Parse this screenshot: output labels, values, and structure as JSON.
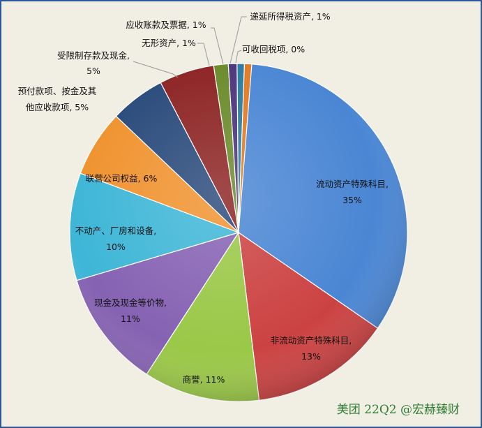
{
  "chart_data": {
    "type": "pie",
    "title": "",
    "slices": [
      {
        "label": "流动资产特殊科目",
        "value": 35,
        "pct_label": "35%",
        "color": "#4a86d4"
      },
      {
        "label": "非流动资产特殊科目",
        "value": 13,
        "pct_label": "13%",
        "color": "#cc4242"
      },
      {
        "label": "商誉",
        "value": 11,
        "pct_label": "11%",
        "color": "#9ac847"
      },
      {
        "label": "现金及现金等价物",
        "value": 11,
        "pct_label": "11%",
        "color": "#8662b3"
      },
      {
        "label": "不动产、厂房和设备",
        "value": 10,
        "pct_label": "10%",
        "color": "#3eb6d7"
      },
      {
        "label": "联营公司权益",
        "value": 6,
        "pct_label": "6%",
        "color": "#f0922e"
      },
      {
        "label": "预付款项、按金及其他应收款项",
        "value": 5,
        "pct_label": "5%",
        "color": "#28497a"
      },
      {
        "label": "受限制存款及现金",
        "value": 5,
        "pct_label": "5%",
        "color": "#8c2222"
      },
      {
        "label": "无形资产",
        "value": 1,
        "pct_label": "1%",
        "color": "#6a8a2a"
      },
      {
        "label": "应收账款及票据",
        "value": 1,
        "pct_label": "1%",
        "color": "#4a347a"
      },
      {
        "label": "递延所得税资产",
        "value": 1,
        "pct_label": "1%",
        "color": "#2a7aa0"
      },
      {
        "label": "可收回税项",
        "value": 0,
        "pct_label": "0%",
        "color": "#e07a22"
      }
    ]
  },
  "display_labels": {
    "liudong": "流动资产特殊科目,",
    "liudong_pct": "35%",
    "feiliudong": "非流动资产特殊科目,",
    "feiliudong_pct": "13%",
    "shangyu": "商誉, 11%",
    "xianjin": "现金及现金等价物,",
    "xianjin_pct": "11%",
    "budongchan": "不动产、厂房和设备,",
    "budongchan_pct": "10%",
    "lianying": "联营公司权益, 6%",
    "yufu_1": "预付款项、按金及其",
    "yufu_2": "他应收款项, 5%",
    "shouxian_1": "受限制存款及现金,",
    "shouxian_2": "5%",
    "wuxing": "无形资产, 1%",
    "yingshou": "应收账款及票据, 1%",
    "diyan": "递延所得税资产, 1%",
    "kehuishou": "可收回税项, 0%"
  },
  "watermark": "美团 22Q2 @宏赫臻财"
}
